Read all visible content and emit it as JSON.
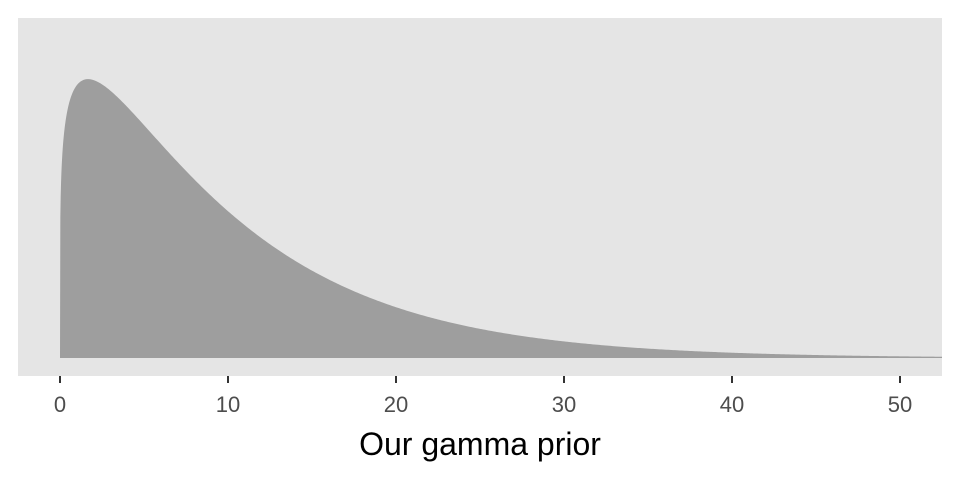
{
  "chart_data": {
    "type": "area",
    "xlabel": "Our gamma prior",
    "ylabel": "",
    "xlim": [
      -2.5,
      52.5
    ],
    "x_ticks": [
      0,
      10,
      20,
      30,
      40,
      50
    ],
    "x_tick_labels": [
      "0",
      "10",
      "20",
      "30",
      "40",
      "50"
    ],
    "y_ticks_visible": false,
    "grid": false,
    "distribution": {
      "family": "gamma",
      "shape": 1.2,
      "rate": 0.12
    },
    "x": [
      0,
      0.1,
      0.25,
      0.5,
      1,
      1.5,
      2,
      3,
      4,
      5,
      6,
      7,
      8,
      9,
      10,
      12,
      14,
      16,
      18,
      20,
      22,
      25,
      28,
      30,
      32,
      35,
      38,
      40,
      42,
      45,
      48,
      50,
      52.5
    ],
    "density": [
      0,
      0.0803,
      0.0848,
      0.0879,
      0.0898,
      0.0901,
      0.0896,
      0.0877,
      0.0848,
      0.0815,
      0.078,
      0.0743,
      0.0706,
      0.067,
      0.0634,
      0.0566,
      0.0504,
      0.0447,
      0.0396,
      0.035,
      0.0309,
      0.0255,
      0.021,
      0.0184,
      0.0161,
      0.0132,
      0.0107,
      0.0093,
      0.0081,
      0.0066,
      0.0053,
      0.0046,
      0.0039
    ],
    "colors": {
      "panel": "#e5e5e5",
      "fill": "#9e9e9e",
      "tick": "#333333"
    }
  }
}
